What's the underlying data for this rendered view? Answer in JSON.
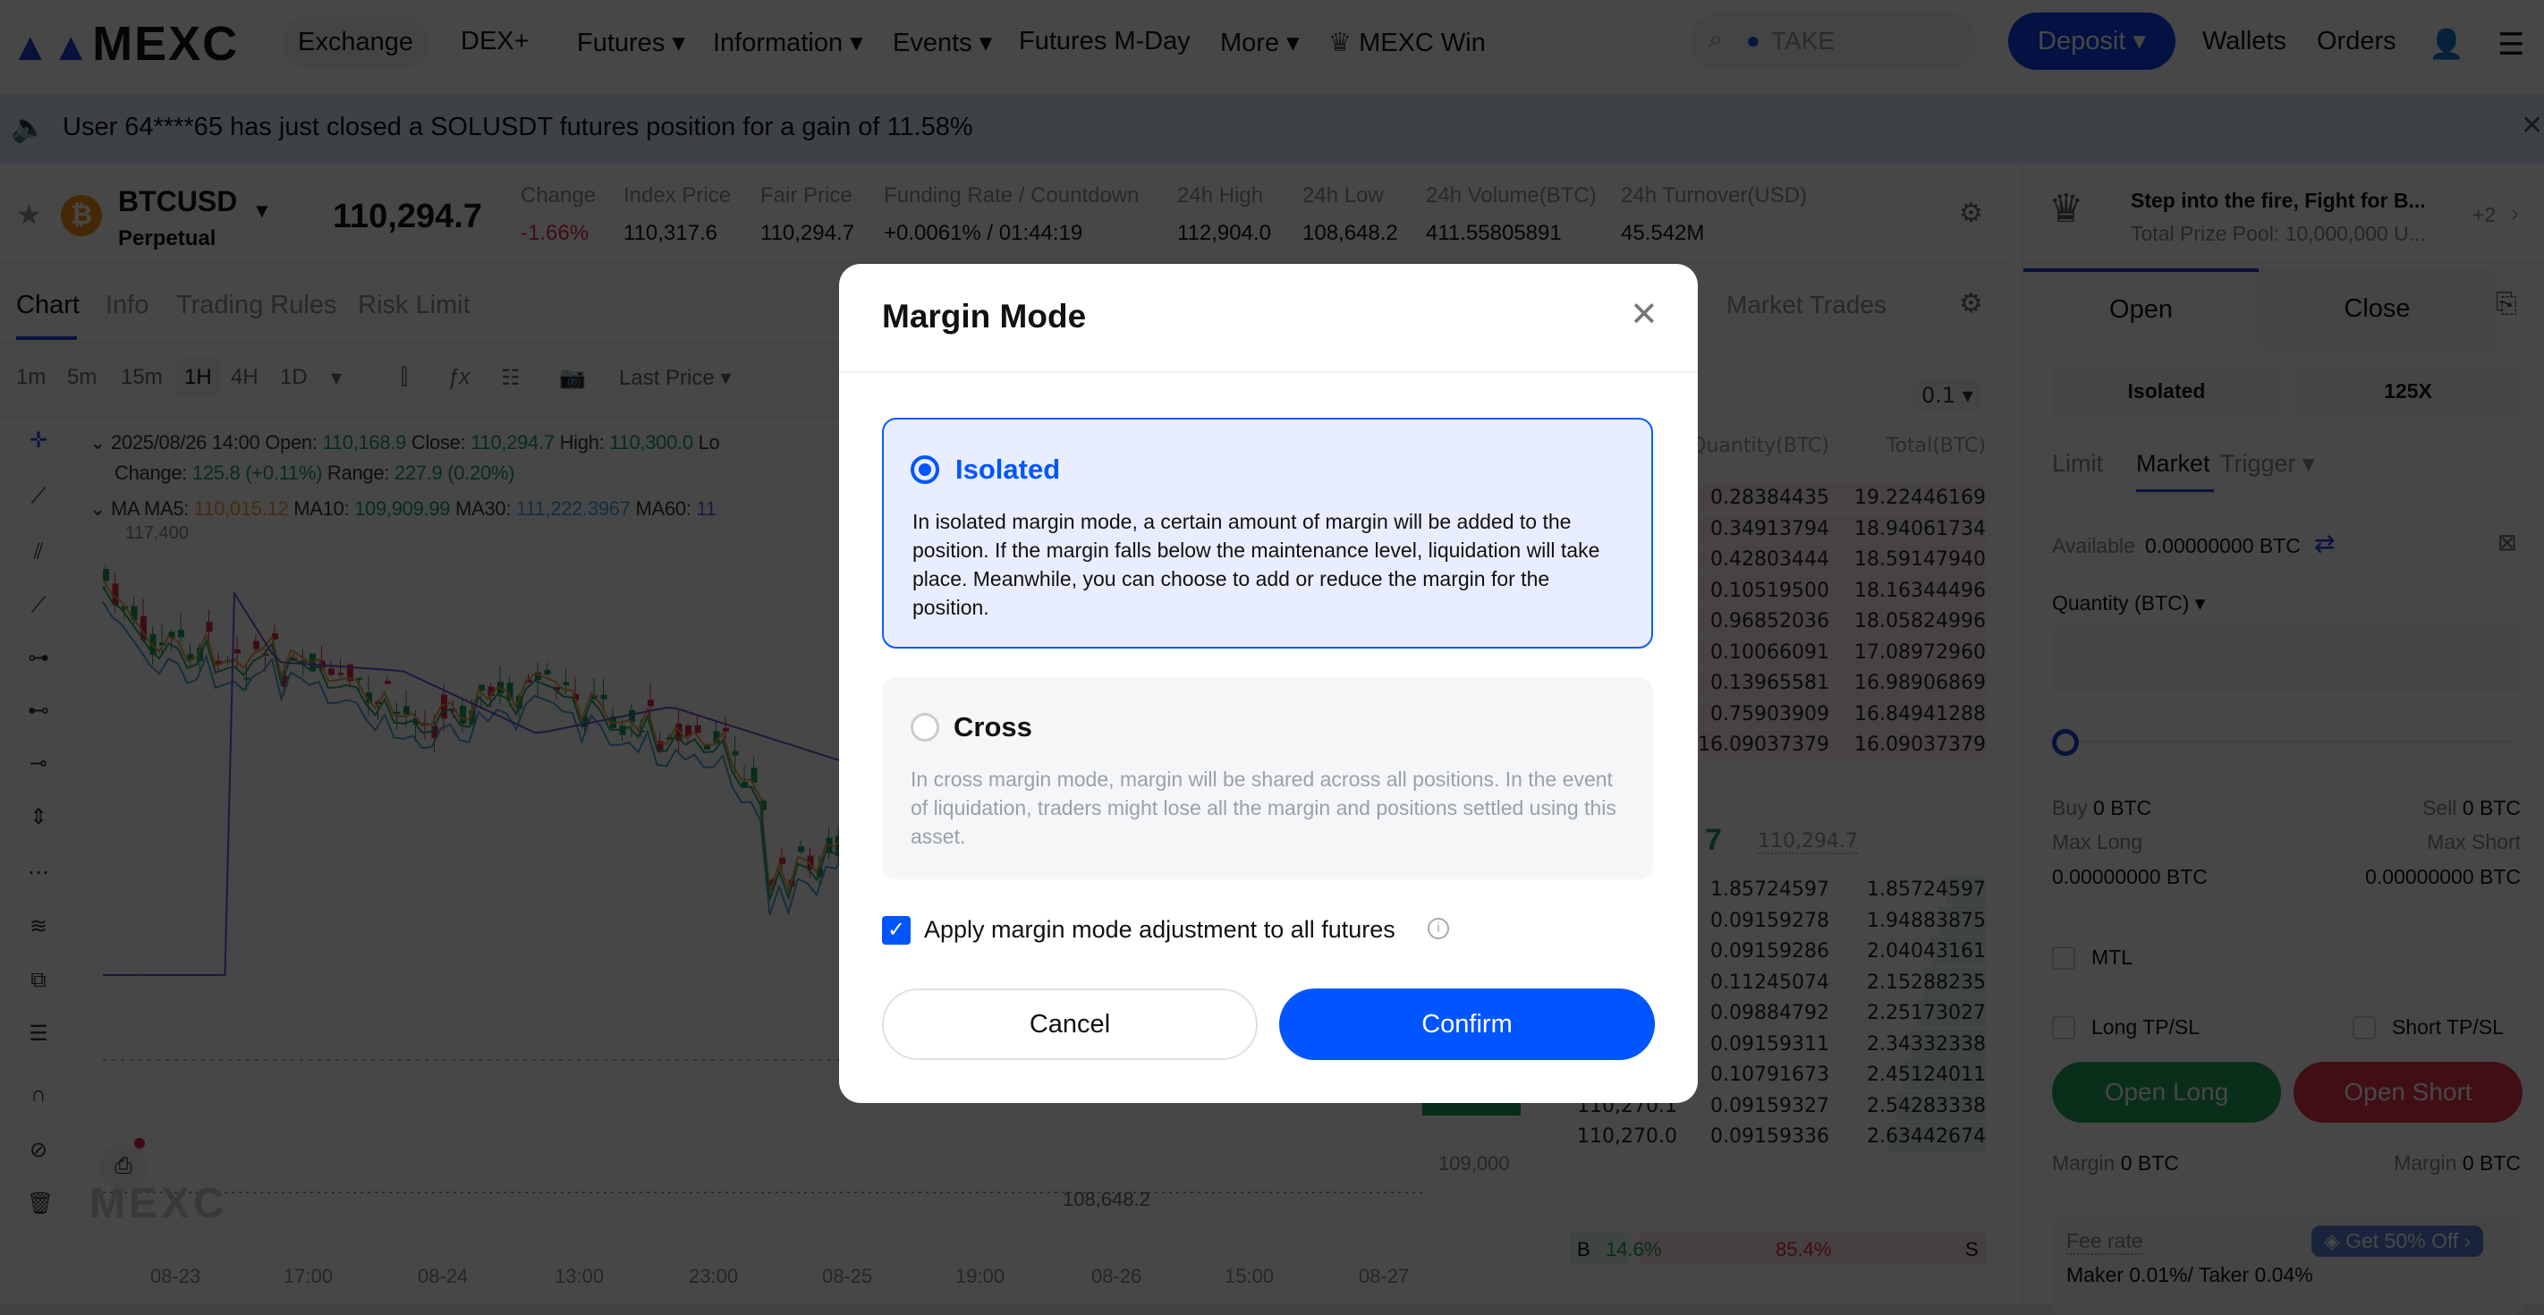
{
  "nav": {
    "logo": "MEXC",
    "items": [
      "Exchange",
      "DEX+",
      "Futures",
      "Information",
      "Events",
      "Futures M-Day",
      "More",
      "MEXC Win"
    ],
    "search_placeholder": "TAKE",
    "deposit": "Deposit",
    "wallets": "Wallets",
    "orders": "Orders"
  },
  "announcement": {
    "text": "User 64****65 has just closed a SOLUSDT futures position for a gain of 11.58%"
  },
  "ticker": {
    "symbol": "BTCUSD",
    "type": "Perpetual",
    "price": "110,294.7",
    "stats": [
      {
        "label": "Change",
        "value": "-1.66%"
      },
      {
        "label": "Index Price",
        "value": "110,317.6"
      },
      {
        "label": "Fair Price",
        "value": "110,294.7"
      },
      {
        "label": "Funding Rate / Countdown",
        "value": "+0.0061% / 01:44:19"
      },
      {
        "label": "24h High",
        "value": "112,904.0"
      },
      {
        "label": "24h Low",
        "value": "108,648.2"
      },
      {
        "label": "24h Volume(BTC)",
        "value": "411.55805891"
      },
      {
        "label": "24h Turnover(USD)",
        "value": "45.542M"
      }
    ]
  },
  "chart": {
    "tabs": [
      "Chart",
      "Info",
      "Trading Rules",
      "Risk Limit"
    ],
    "intervals": [
      "1m",
      "5m",
      "15m",
      "1H",
      "4H",
      "1D"
    ],
    "price_type": "Last Price",
    "ohlc": {
      "date": "2025/08/26 14:00",
      "open_label": "Open:",
      "open": "110,168.9",
      "close_label": "Close:",
      "close": "110,294.7",
      "high_label": "High:",
      "high": "110,300.0",
      "low_label": "Lo",
      "change_label": "Change:",
      "change": "125.8 (+0.11%)",
      "range_label": "Range:",
      "range": "227.9 (0.20%)"
    },
    "ma": {
      "label": "MA",
      "ma5_label": "MA5:",
      "ma5": "110,015.12",
      "ma10_label": "MA10:",
      "ma10": "109,909.99",
      "ma30_label": "MA30:",
      "ma30": "111,222.3967",
      "ma60_label": "MA60:",
      "ma60": "11"
    },
    "high_marker": "117,400",
    "low_marker": "108,648.2",
    "axis_label": "109,000",
    "x_labels": [
      "08-23",
      "17:00",
      "08-24",
      "13:00",
      "23:00",
      "08-25",
      "19:00",
      "08-26",
      "15:00",
      "08-27"
    ],
    "watermark": "MEXC",
    "colors": {
      "up": "#1a9d5b",
      "down": "#e0294a",
      "ma5": "#e8a23a",
      "ma10": "#2fa36b",
      "ma30": "#4aa6d6",
      "ma60": "#7b4fd6"
    }
  },
  "orderbook": {
    "title": "Market Trades",
    "precision": "0.1",
    "headers": [
      "Quantity(BTC)",
      "Total(BTC)"
    ],
    "asks": [
      [
        "0.28384435",
        "19.22446169"
      ],
      [
        "0.34913794",
        "18.94061734"
      ],
      [
        "0.42803444",
        "18.59147940"
      ],
      [
        "0.10519500",
        "18.16344496"
      ],
      [
        "0.96852036",
        "18.05824996"
      ],
      [
        "0.10066091",
        "17.08972960"
      ],
      [
        "0.13965581",
        "16.98906869"
      ],
      [
        "0.75903909",
        "16.84941288"
      ],
      [
        "16.09037379",
        "16.09037379"
      ]
    ],
    "mid": {
      "last": "7",
      "mark": "110,294.7"
    },
    "bids": [
      [
        "",
        "1.85724597",
        "1.85724597"
      ],
      [
        "",
        "0.09159278",
        "1.94883875"
      ],
      [
        "",
        "0.09159286",
        "2.04043161"
      ],
      [
        "",
        "0.11245074",
        "2.15288235"
      ],
      [
        "",
        "0.09884792",
        "2.25173027"
      ],
      [
        "",
        "0.09159311",
        "2.34332338"
      ],
      [
        "110,270.2",
        "0.10791673",
        "2.45124011"
      ],
      [
        "110,270.1",
        "0.09159327",
        "2.54283338"
      ],
      [
        "110,270.0",
        "0.09159336",
        "2.63442674"
      ]
    ],
    "buy_label": "B",
    "buy_pct": "14.6%",
    "sell_pct": "85.4%",
    "sell_label": "S",
    "buy_ratio": 14.6
  },
  "panel": {
    "promo_title": "Step into the fire, Fight for B...",
    "promo_sub": "Total Prize Pool: 10,000,000 U...",
    "promo_more": "+2",
    "tabs": [
      "Open",
      "Close"
    ],
    "margin_mode": "Isolated",
    "leverage": "125X",
    "order_types": [
      "Limit",
      "Market",
      "Trigger"
    ],
    "available_label": "Available",
    "available": "0.00000000 BTC",
    "quantity_label": "Quantity (BTC)",
    "slider_value": 0,
    "buy_label": "Buy",
    "buy": "0 BTC",
    "sell_label": "Sell",
    "sell": "0 BTC",
    "max_long_label": "Max Long",
    "max_long": "0.00000000 BTC",
    "max_short_label": "Max Short",
    "max_short": "0.00000000 BTC",
    "mtl": "MTL",
    "long_tpsl": "Long TP/SL",
    "short_tpsl": "Short TP/SL",
    "open_long": "Open Long",
    "open_short": "Open Short",
    "margin_label": "Margin",
    "margin_long": "0 BTC",
    "margin_short": "0 BTC",
    "fee_label": "Fee rate",
    "fee": "Maker 0.01%/ Taker 0.04%",
    "promo_fee": "Get 50% Off"
  },
  "modal": {
    "title": "Margin Mode",
    "options": [
      {
        "label": "Isolated",
        "selected": true,
        "desc": "In isolated margin mode, a certain amount of margin will be added to the position. If the margin falls below the maintenance level, liquidation will take place. Meanwhile, you can choose to add or reduce the margin for the position."
      },
      {
        "label": "Cross",
        "selected": false,
        "desc": "In cross margin mode, margin will be shared across all positions. In the event of liquidation, traders might lose all the margin and positions settled using this asset."
      }
    ],
    "apply_all": "Apply margin mode adjustment to all futures",
    "apply_all_checked": true,
    "cancel": "Cancel",
    "confirm": "Confirm",
    "accent": "#0055ff"
  }
}
